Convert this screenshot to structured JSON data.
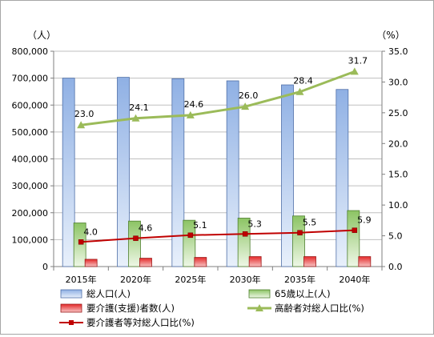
{
  "chart_data": {
    "type": "bar",
    "categories": [
      "2015年",
      "2020年",
      "2025年",
      "2030年",
      "2035年",
      "2040年"
    ],
    "y_left": {
      "unit_label": "（人）",
      "min": 0,
      "max": 800000,
      "step": 100000,
      "tick_labels": [
        "0",
        "100,000",
        "200,000",
        "300,000",
        "400,000",
        "500,000",
        "600,000",
        "700,000",
        "800,000"
      ]
    },
    "y_right": {
      "unit_label": "（%）",
      "min": 0,
      "max": 35,
      "step": 5,
      "tick_labels": [
        "0.0",
        "5.0",
        "10.0",
        "15.0",
        "20.0",
        "25.0",
        "30.0",
        "35.0"
      ]
    },
    "grid": true,
    "legend_position": "bottom",
    "bar_series": [
      {
        "name": "総人口(人)",
        "values": [
          700000,
          703000,
          698000,
          690000,
          675000,
          658000
        ],
        "color": "#9fbce8"
      },
      {
        "name": "65歳以上(人)",
        "values": [
          162000,
          169000,
          172000,
          180000,
          188000,
          208000
        ],
        "color": "#9bce78"
      },
      {
        "name": "要介護(支援)者数(人)",
        "values": [
          27000,
          31000,
          34000,
          37000,
          37000,
          37000
        ],
        "color": "#e83a3a"
      }
    ],
    "line_series": [
      {
        "name": "高齢者対総人口比(%)",
        "values": [
          23.0,
          24.1,
          24.6,
          26.0,
          28.4,
          31.7
        ],
        "labels": [
          "23.0",
          "24.1",
          "24.6",
          "26.0",
          "28.4",
          "31.7"
        ],
        "color": "#9bbb59",
        "marker": "triangle"
      },
      {
        "name": "要介護者等対総人口比(%)",
        "values": [
          4.0,
          4.6,
          5.1,
          5.3,
          5.5,
          5.9
        ],
        "labels": [
          "4.0",
          "4.6",
          "5.1",
          "5.3",
          "5.5",
          "5.9"
        ],
        "color": "#c00000",
        "marker": "square"
      }
    ]
  }
}
